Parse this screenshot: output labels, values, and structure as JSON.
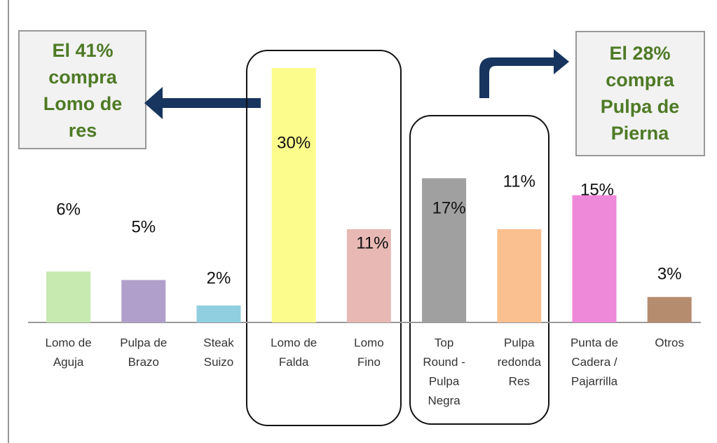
{
  "chart_data": {
    "type": "bar",
    "categories": [
      [
        "Lomo de",
        "Aguja"
      ],
      [
        "Pulpa de",
        "Brazo"
      ],
      [
        "Steak",
        "Suizo"
      ],
      [
        "Lomo de",
        "Falda"
      ],
      [
        "Lomo",
        "Fino"
      ],
      [
        "Top",
        "Round -",
        "Pulpa",
        "Negra"
      ],
      [
        "Pulpa",
        "redonda",
        "Res"
      ],
      [
        "Punta de",
        "Cadera /",
        "Pajarrilla"
      ],
      [
        "Otros"
      ]
    ],
    "values": [
      6,
      5,
      2,
      30,
      11,
      17,
      11,
      15,
      3
    ],
    "value_labels": [
      "6%",
      "5%",
      "2%",
      "30%",
      "11%",
      "17%",
      "11%",
      "15%",
      "3%"
    ],
    "colors": [
      "#c6eab0",
      "#b09fca",
      "#8fcfe0",
      "#fcfc8c",
      "#e8b9b4",
      "#a0a0a0",
      "#fbc08f",
      "#ee88d8",
      "#b58c6d"
    ],
    "ylim": [
      0,
      30
    ],
    "annotations": [
      [
        "El 41%",
        "compra",
        "Lomo de",
        "res"
      ],
      [
        "El 28%",
        "compra",
        "Pulpa de",
        "Pierna"
      ]
    ]
  }
}
